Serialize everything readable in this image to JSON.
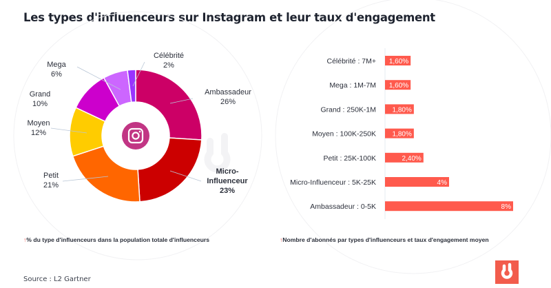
{
  "title": "Les types d'influenceurs sur Instagram et leur taux d'engagement",
  "watermark": "digimind",
  "chart_data": [
    {
      "type": "pie",
      "variant": "donut",
      "center_icon": "instagram-icon",
      "categories": [
        "Ambassadeur",
        "Micro-Influenceur",
        "Petit",
        "Moyen",
        "Grand",
        "Mega",
        "Célébrité"
      ],
      "values": [
        26,
        23,
        21,
        12,
        10,
        6,
        2
      ],
      "labels": [
        "26%",
        "23%",
        "21%",
        "12%",
        "10%",
        "6%",
        "2%"
      ],
      "colors": [
        "#cc0066",
        "#cc0000",
        "#ff6600",
        "#ffcc00",
        "#cc00cc",
        "#cc66ff",
        "#9933ff"
      ],
      "caption": "% du type d'influenceurs dans la population totale d'influenceurs"
    },
    {
      "type": "bar",
      "orientation": "horizontal",
      "categories": [
        "Célébrité  : 7M+",
        "Mega : 1M-7M",
        "Grand : 250K-1M",
        "Moyen : 100K-250K",
        "Petit : 25K-100K",
        "Micro-Influenceur : 5K-25K",
        "Ambassadeur : 0-5K"
      ],
      "values": [
        1.6,
        1.6,
        1.8,
        1.8,
        2.4,
        4,
        8
      ],
      "labels": [
        "1,60%",
        "1,60%",
        "1,80%",
        "1,80%",
        "2,40%",
        "4%",
        "8%"
      ],
      "color": "#ff5a4d",
      "caption": "Nombre d'abonnés par types d'influenceurs et taux d'engagement moyen"
    }
  ],
  "source": "Source : L2 Gartner",
  "caption_icon": "arrow-up-icon"
}
